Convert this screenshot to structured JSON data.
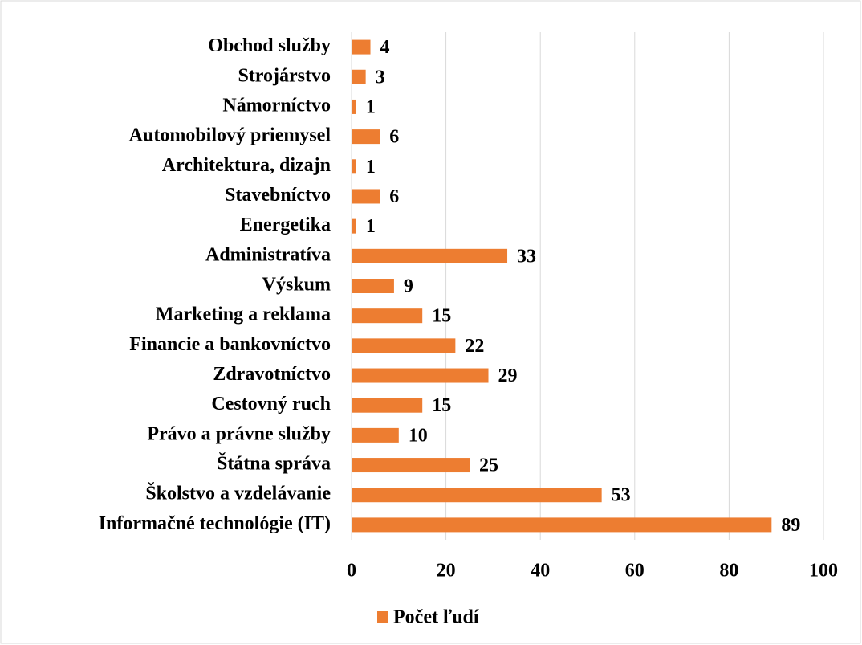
{
  "chart_data": {
    "type": "bar",
    "orientation": "horizontal",
    "categories": [
      "Informačné technológie (IT)",
      "Školstvo a vzdelávanie",
      "Štátna správa",
      "Právo a právne služby",
      "Cestovný ruch",
      "Zdravotníctvo",
      "Financie a bankovníctvo",
      "Marketing a reklama",
      "Výskum",
      "Administratíva",
      "Energetika",
      "Stavebníctvo",
      "Architektura, dizajn",
      "Automobilový priemysel",
      "Námorníctvo",
      "Strojárstvo",
      "Obchod služby"
    ],
    "series": [
      {
        "name": "Počet ľudí",
        "color": "#ed7d31",
        "values": [
          89,
          53,
          25,
          10,
          15,
          29,
          22,
          15,
          9,
          33,
          1,
          6,
          1,
          6,
          1,
          3,
          4
        ]
      }
    ],
    "xlim": [
      0,
      100
    ],
    "xticks": [
      0,
      20,
      40,
      60,
      80,
      100
    ],
    "grid": true,
    "legend": "bottom"
  }
}
